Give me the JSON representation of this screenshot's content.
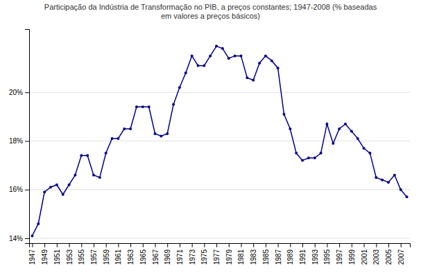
{
  "chart_data": {
    "type": "line",
    "title": "Participação da Indústria de Transformação no PIB, a preços constantes; 1947-2008 (% baseadas\nem valores a preços básicos)",
    "x": [
      1947,
      1948,
      1949,
      1950,
      1951,
      1952,
      1953,
      1954,
      1955,
      1956,
      1957,
      1958,
      1959,
      1960,
      1961,
      1962,
      1963,
      1964,
      1965,
      1966,
      1967,
      1968,
      1969,
      1970,
      1971,
      1972,
      1973,
      1974,
      1975,
      1976,
      1977,
      1978,
      1979,
      1980,
      1981,
      1982,
      1983,
      1984,
      1985,
      1986,
      1987,
      1988,
      1989,
      1990,
      1991,
      1992,
      1993,
      1994,
      1995,
      1996,
      1997,
      1998,
      1999,
      2000,
      2001,
      2002,
      2003,
      2004,
      2005,
      2006,
      2007,
      2008
    ],
    "values": [
      14.1,
      14.6,
      15.9,
      16.1,
      16.2,
      15.8,
      16.2,
      16.6,
      17.4,
      17.4,
      16.6,
      16.5,
      17.5,
      18.1,
      18.1,
      18.5,
      18.5,
      19.4,
      19.4,
      19.4,
      18.3,
      18.2,
      18.3,
      19.5,
      20.2,
      20.8,
      21.5,
      21.1,
      21.1,
      21.5,
      21.9,
      21.8,
      21.4,
      21.5,
      21.5,
      20.6,
      20.5,
      21.2,
      21.5,
      21.3,
      21.0,
      19.1,
      18.5,
      17.5,
      17.2,
      17.3,
      17.3,
      17.5,
      18.7,
      17.9,
      18.5,
      18.7,
      18.4,
      18.1,
      17.7,
      17.5,
      16.5,
      16.4,
      16.3,
      16.6,
      16.0,
      15.7
    ],
    "color": "#00008B",
    "marker": "circle",
    "xlim": [
      1946.5,
      2008.5
    ],
    "xticks": [
      1947,
      1949,
      1951,
      1953,
      1955,
      1957,
      1959,
      1961,
      1963,
      1965,
      1967,
      1969,
      1971,
      1973,
      1975,
      1977,
      1979,
      1981,
      1983,
      1985,
      1987,
      1989,
      1991,
      1993,
      1995,
      1997,
      1999,
      2001,
      2003,
      2005,
      2007
    ],
    "ylim": [
      13.8,
      22.6
    ],
    "yticks": [
      {
        "value": 14.0,
        "label": "14%"
      },
      {
        "value": 16.0,
        "label": "16%"
      },
      {
        "value": 18.0,
        "label": "18%"
      },
      {
        "value": 20.0,
        "label": "20%"
      }
    ],
    "grid": "y"
  }
}
